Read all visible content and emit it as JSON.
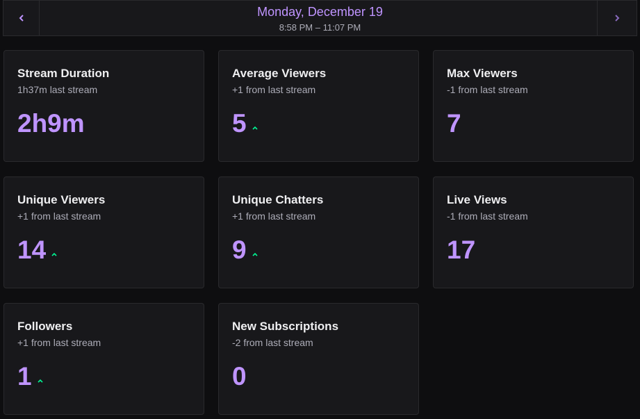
{
  "header": {
    "title": "Monday, December 19",
    "subtitle": "8:58 PM – 11:07 PM"
  },
  "cards": [
    {
      "title": "Stream Duration",
      "subtitle": "1h37m last stream",
      "value": "2h9m",
      "trend": "none"
    },
    {
      "title": "Average Viewers",
      "subtitle": "+1 from last stream",
      "value": 5,
      "trend": "up"
    },
    {
      "title": "Max Viewers",
      "subtitle": "-1 from last stream",
      "value": 7,
      "trend": "none"
    },
    {
      "title": "Unique Viewers",
      "subtitle": "+1 from last stream",
      "value": 14,
      "trend": "up"
    },
    {
      "title": "Unique Chatters",
      "subtitle": "+1 from last stream",
      "value": 9,
      "trend": "up"
    },
    {
      "title": "Live Views",
      "subtitle": "-1 from last stream",
      "value": 17,
      "trend": "none"
    },
    {
      "title": "Followers",
      "subtitle": "+1 from last stream",
      "value": 1,
      "trend": "up"
    },
    {
      "title": "New Subscriptions",
      "subtitle": "-2 from last stream",
      "value": 0,
      "trend": "none"
    }
  ]
}
